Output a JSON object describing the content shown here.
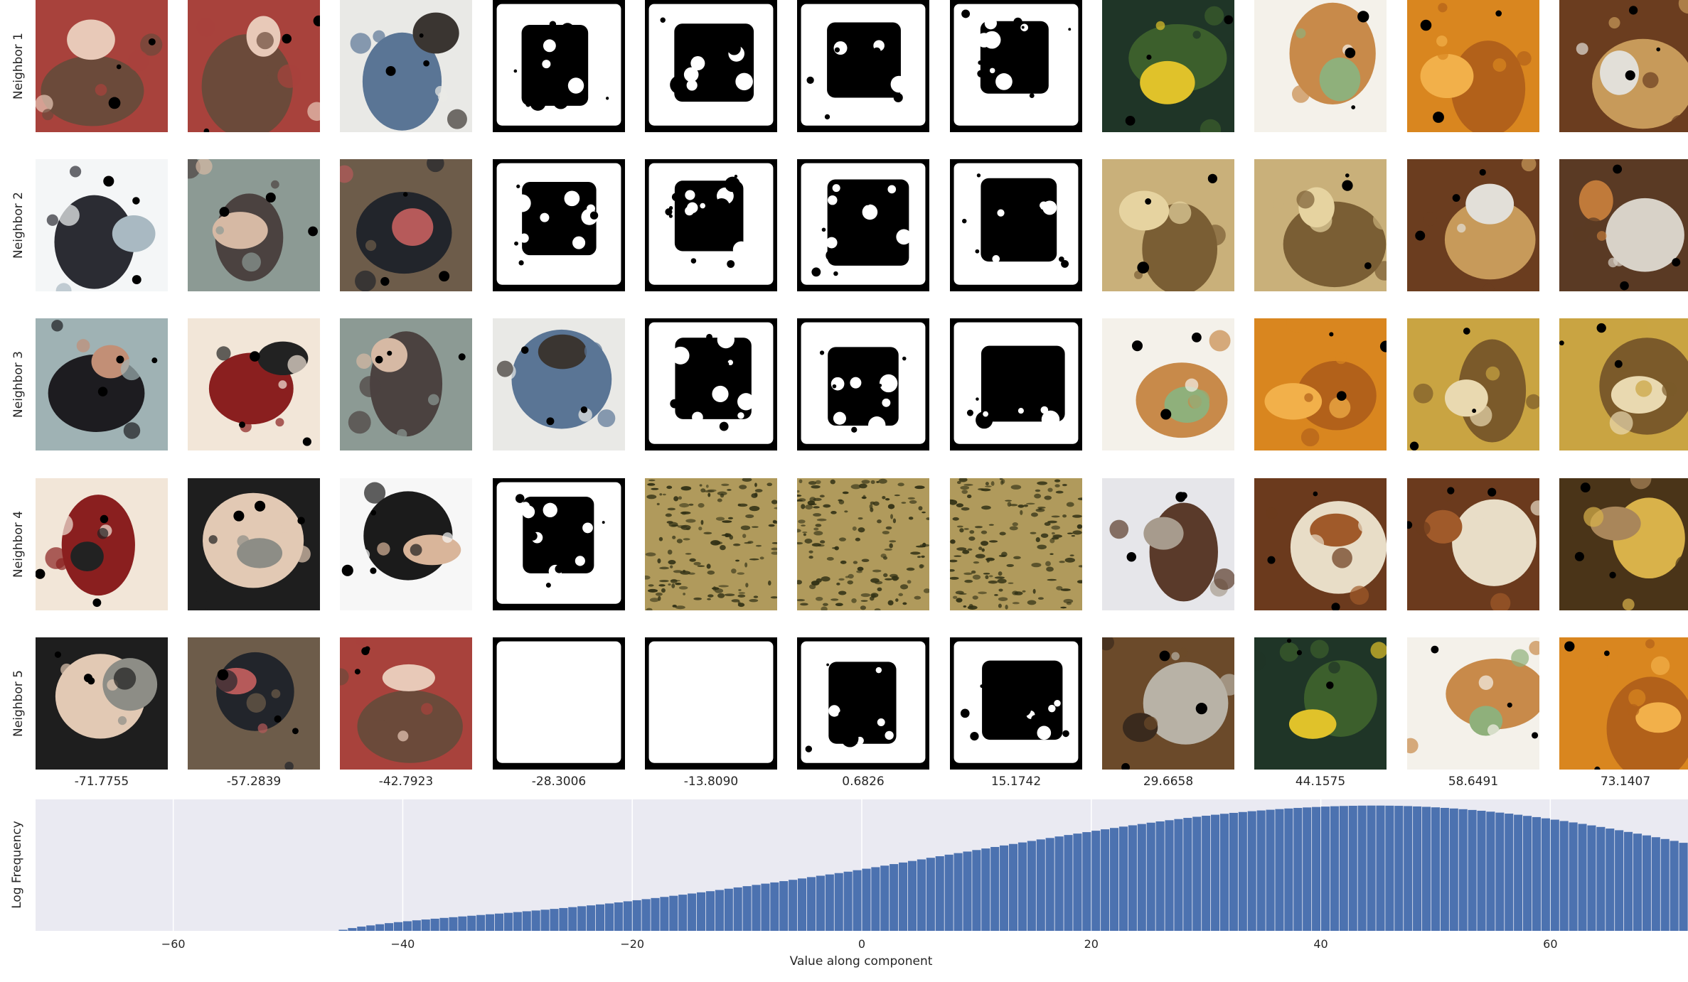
{
  "colors": {
    "hist_bg": "#eaeaf2",
    "bar": "#4c72b0",
    "grid": "#ffffff",
    "mask_fg": "#000000",
    "mask_bg": "#ffffff",
    "noise_a": "#b09a5c",
    "noise_b": "#2f2f14"
  },
  "grid": {
    "row_labels": [
      "Neighbor 1",
      "Neighbor 2",
      "Neighbor 3",
      "Neighbor 4",
      "Neighbor 5"
    ],
    "column_values": [
      "-71.7755",
      "-57.2839",
      "-42.7923",
      "-28.3006",
      "-13.8090",
      "0.6826",
      "15.1742",
      "29.6658",
      "44.1575",
      "58.6491",
      "73.1407"
    ],
    "thumbnails": [
      [
        {
          "kind": "photo",
          "subject": "doll face red hat",
          "palette": [
            "#a8423c",
            "#6b4a3a",
            "#e8c9b8"
          ]
        },
        {
          "kind": "photo",
          "subject": "doll face red hat",
          "palette": [
            "#a8423c",
            "#6b4a3a",
            "#e8c9b8"
          ]
        },
        {
          "kind": "photo",
          "subject": "denim jacket leather skirt",
          "palette": [
            "#e9e9e6",
            "#5a7595",
            "#3a3531"
          ]
        },
        {
          "kind": "mask"
        },
        {
          "kind": "mask"
        },
        {
          "kind": "mask"
        },
        {
          "kind": "mask"
        },
        {
          "kind": "photo",
          "subject": "lemon herbs watering can",
          "palette": [
            "#1f3527",
            "#3c5f2c",
            "#e0c22a"
          ]
        },
        {
          "kind": "photo",
          "subject": "ceramic bowls",
          "palette": [
            "#f4f1ea",
            "#c88a4a",
            "#8fb07b"
          ]
        },
        {
          "kind": "photo",
          "subject": "roasted chickpeas",
          "palette": [
            "#d9861f",
            "#b2611a",
            "#f2b04a"
          ]
        },
        {
          "kind": "photo",
          "subject": "ribs with onions",
          "palette": [
            "#6b3d1f",
            "#c79a5a",
            "#e2dfd8"
          ]
        }
      ],
      [
        {
          "kind": "photo",
          "subject": "dark sleeve on white",
          "palette": [
            "#f4f6f7",
            "#2b2c33",
            "#a9b9c2"
          ]
        },
        {
          "kind": "photo",
          "subject": "woman with hair dryer",
          "palette": [
            "#8c9a94",
            "#4b4240",
            "#d6b9a4"
          ]
        },
        {
          "kind": "photo",
          "subject": "woman with red hair",
          "palette": [
            "#6d5c4a",
            "#22252b",
            "#b65a5a"
          ]
        },
        {
          "kind": "mask"
        },
        {
          "kind": "mask"
        },
        {
          "kind": "mask"
        },
        {
          "kind": "mask"
        },
        {
          "kind": "photo",
          "subject": "potatoes",
          "palette": [
            "#c9b07a",
            "#7a5e34",
            "#e6d3a0"
          ]
        },
        {
          "kind": "photo",
          "subject": "potatoes",
          "palette": [
            "#c9b07a",
            "#7a5e34",
            "#e6d3a0"
          ]
        },
        {
          "kind": "photo",
          "subject": "ribs with onions",
          "palette": [
            "#6b3d1f",
            "#c79a5a",
            "#e2dfd8"
          ]
        },
        {
          "kind": "photo",
          "subject": "soup dish on counter",
          "palette": [
            "#5a3a24",
            "#d8d2c8",
            "#c07a3a"
          ]
        }
      ],
      [
        {
          "kind": "photo",
          "subject": "dark skirt leg",
          "palette": [
            "#9fb2b4",
            "#1d1c20",
            "#c28f76"
          ]
        },
        {
          "kind": "photo",
          "subject": "dancer high kick",
          "palette": [
            "#f2e6d8",
            "#8a1f1f",
            "#222222"
          ]
        },
        {
          "kind": "photo",
          "subject": "woman with hair dryer",
          "palette": [
            "#8c9a94",
            "#4b4240",
            "#d6b9a4"
          ]
        },
        {
          "kind": "photo",
          "subject": "denim jacket leather skirt",
          "palette": [
            "#e9e9e6",
            "#5a7595",
            "#3a3531"
          ]
        },
        {
          "kind": "mask"
        },
        {
          "kind": "mask"
        },
        {
          "kind": "mask"
        },
        {
          "kind": "photo",
          "subject": "ceramic bowls",
          "palette": [
            "#f4f1ea",
            "#c88a4a",
            "#8fb07b"
          ]
        },
        {
          "kind": "photo",
          "subject": "roasted chickpeas",
          "palette": [
            "#d9861f",
            "#b2611a",
            "#f2b04a"
          ]
        },
        {
          "kind": "photo",
          "subject": "grilled dish on rice",
          "palette": [
            "#c9a442",
            "#7b5a2a",
            "#e9d9b0"
          ]
        },
        {
          "kind": "photo",
          "subject": "grilled dish on rice",
          "palette": [
            "#c9a442",
            "#7b5a2a",
            "#e9d9b0"
          ]
        }
      ],
      [
        {
          "kind": "photo",
          "subject": "dancer high kick",
          "palette": [
            "#f2e6d8",
            "#8a1f1f",
            "#222222"
          ]
        },
        {
          "kind": "photo",
          "subject": "mannequin with knit hat",
          "palette": [
            "#1e1e1e",
            "#e2c9b4",
            "#8d8d86"
          ]
        },
        {
          "kind": "photo",
          "subject": "woman in black jacket",
          "palette": [
            "#f7f7f7",
            "#1b1b1b",
            "#d9b59a"
          ]
        },
        {
          "kind": "mask"
        },
        {
          "kind": "noise"
        },
        {
          "kind": "noise"
        },
        {
          "kind": "noise"
        },
        {
          "kind": "photo",
          "subject": "pepper mill and jar",
          "palette": [
            "#e6e6ea",
            "#5a3a2a",
            "#a79b8d"
          ]
        },
        {
          "kind": "photo",
          "subject": "glazed chicken on rice",
          "palette": [
            "#6b3a1d",
            "#e8ddc7",
            "#a05a2a"
          ]
        },
        {
          "kind": "photo",
          "subject": "glazed chicken on rice",
          "palette": [
            "#6b3a1d",
            "#e8ddc7",
            "#a05a2a"
          ]
        },
        {
          "kind": "photo",
          "subject": "lemon in glass bowl",
          "palette": [
            "#4a3418",
            "#d9b24a",
            "#a9865a"
          ]
        }
      ],
      [
        {
          "kind": "photo",
          "subject": "mannequin with knit hat",
          "palette": [
            "#1e1e1e",
            "#e2c9b4",
            "#8d8d86"
          ]
        },
        {
          "kind": "photo",
          "subject": "woman with red hair",
          "palette": [
            "#6d5c4a",
            "#22252b",
            "#b65a5a"
          ]
        },
        {
          "kind": "photo",
          "subject": "doll face red hat",
          "palette": [
            "#a8423c",
            "#6b4a3a",
            "#e8c9b8"
          ]
        },
        {
          "kind": "mask_blank"
        },
        {
          "kind": "mask_blank"
        },
        {
          "kind": "mask"
        },
        {
          "kind": "mask"
        },
        {
          "kind": "photo",
          "subject": "pan on kitchen floor",
          "palette": [
            "#6b4a2a",
            "#b8b2a6",
            "#3a2a1d"
          ]
        },
        {
          "kind": "photo",
          "subject": "lemon herbs watering can",
          "palette": [
            "#1f3527",
            "#3c5f2c",
            "#e0c22a"
          ]
        },
        {
          "kind": "photo",
          "subject": "ceramic bowls",
          "palette": [
            "#f4f1ea",
            "#c88a4a",
            "#8fb07b"
          ]
        },
        {
          "kind": "photo",
          "subject": "roasted chickpeas",
          "palette": [
            "#d9861f",
            "#b2611a",
            "#f2b04a"
          ]
        }
      ]
    ]
  },
  "chart_data": {
    "type": "bar",
    "xlabel": "Value along component",
    "ylabel": "Log Frequency",
    "xlim": [
      -72,
      72
    ],
    "xticks": [
      -60,
      -40,
      -20,
      0,
      20,
      40,
      60
    ],
    "xtick_labels": [
      "−60",
      "−40",
      "−20",
      "0",
      "20",
      "40",
      "60"
    ],
    "grid": true,
    "bin_width": 0.8,
    "bin_start": -45.6,
    "log_frequency": [
      0.21,
      0.55,
      0.84,
      1.08,
      1.31,
      1.53,
      1.73,
      1.91,
      2.09,
      2.25,
      2.41,
      2.57,
      2.71,
      2.86,
      3.0,
      3.15,
      3.29,
      3.43,
      3.58,
      3.73,
      3.89,
      4.04,
      4.2,
      4.36,
      4.53,
      4.71,
      4.89,
      5.06,
      5.25,
      5.44,
      5.65,
      5.87,
      6.08,
      6.3,
      6.52,
      6.74,
      6.97,
      7.19,
      7.42,
      7.65,
      7.88,
      8.12,
      8.37,
      8.63,
      8.88,
      9.13,
      9.38,
      9.62,
      9.88,
      10.14,
      10.41,
      10.68,
      10.95,
      11.21,
      11.48,
      11.76,
      12.05,
      12.35,
      12.65,
      12.96,
      13.27,
      13.58,
      13.89,
      14.2,
      14.52,
      14.83,
      15.14,
      15.45,
      15.76,
      16.06,
      16.37,
      16.67,
      16.97,
      17.27,
      17.57,
      17.87,
      18.17,
      18.46,
      18.76,
      19.05,
      19.33,
      19.62,
      19.9,
      20.18,
      20.45,
      20.72,
      20.98,
      21.24,
      21.5,
      21.75,
      21.99,
      22.22,
      22.45,
      22.67,
      22.88,
      23.08,
      23.27,
      23.45,
      23.62,
      23.78,
      23.93,
      24.07,
      24.2,
      24.32,
      24.43,
      24.53,
      24.62,
      24.7,
      24.77,
      24.82,
      24.86,
      24.89,
      24.9,
      24.9,
      24.88,
      24.85,
      24.8,
      24.73,
      24.65,
      24.55,
      24.44,
      24.32,
      24.18,
      24.03,
      23.87,
      23.69,
      23.5,
      23.3,
      23.08,
      22.85,
      22.61,
      22.36,
      22.1,
      21.83,
      21.55,
      21.26,
      20.96,
      20.65,
      20.33,
      20.0,
      19.66,
      19.32,
      18.97,
      18.61,
      18.25,
      17.88,
      17.5,
      17.12,
      16.74,
      16.35,
      15.96,
      15.56,
      15.16,
      14.76,
      14.36,
      13.96,
      13.55,
      13.15,
      12.75,
      12.35,
      11.95,
      11.55,
      11.16,
      10.77,
      10.38,
      10.0,
      9.62,
      9.25,
      8.89,
      8.53,
      8.18,
      7.84,
      7.5,
      7.17,
      6.85,
      6.54,
      6.24,
      5.94,
      5.65,
      5.37,
      5.1,
      4.84,
      4.58,
      4.33,
      4.09,
      3.86,
      3.63,
      3.41,
      3.19,
      2.98,
      2.77,
      2.56,
      2.35,
      2.14,
      1.92,
      1.69,
      1.45,
      1.18,
      0.88,
      0.52,
      0.18
    ]
  }
}
